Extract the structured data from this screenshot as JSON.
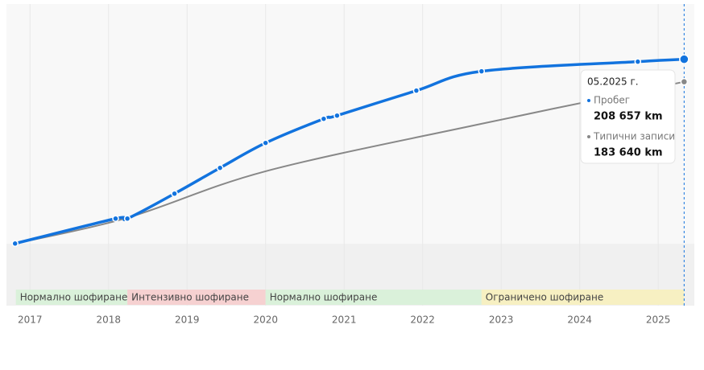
{
  "chart_data": {
    "type": "line",
    "xlim": [
      2016.7,
      2025.46
    ],
    "ylim": [
      -65000,
      270000
    ],
    "xticks": [
      2017,
      2018,
      2019,
      2020,
      2021,
      2022,
      2023,
      2024,
      2025
    ],
    "grid": true,
    "series": [
      {
        "name": "Пробег",
        "color": "#1273de",
        "markers": true,
        "x": [
          2016.81,
          2018.09,
          2018.24,
          2018.84,
          2019.42,
          2020.0,
          2020.74,
          2020.91,
          2021.92,
          2022.75,
          2024.74,
          2025.33
        ],
        "values": [
          4000,
          31700,
          31700,
          59400,
          88000,
          115700,
          142500,
          146100,
          173800,
          195300,
          206000,
          208657
        ]
      },
      {
        "name": "Типични записи",
        "color": "#888888",
        "markers": false,
        "x": [
          2016.81,
          2018.24,
          2020.0,
          2022.75,
          2025.33
        ],
        "values": [
          4000,
          32600,
          84250,
          137000,
          183640
        ]
      }
    ],
    "segments": [
      {
        "label": "Нормално шофиране",
        "start": 2016.82,
        "end": 2018.24,
        "color": "#daf1da"
      },
      {
        "label": "Интензивно шофиране",
        "start": 2018.24,
        "end": 2020.0,
        "color": "#f6d1d1"
      },
      {
        "label": "Нормално шофиране",
        "start": 2020.0,
        "end": 2022.75,
        "color": "#daf1da"
      },
      {
        "label": "Ограничено шофиране",
        "start": 2022.75,
        "end": 2025.33,
        "color": "#f7f0c2"
      }
    ],
    "tooltip": {
      "x": 2025.33,
      "title": "05.2025 г.",
      "value_labels": [
        "208 657 km",
        "183 640 km"
      ]
    }
  }
}
